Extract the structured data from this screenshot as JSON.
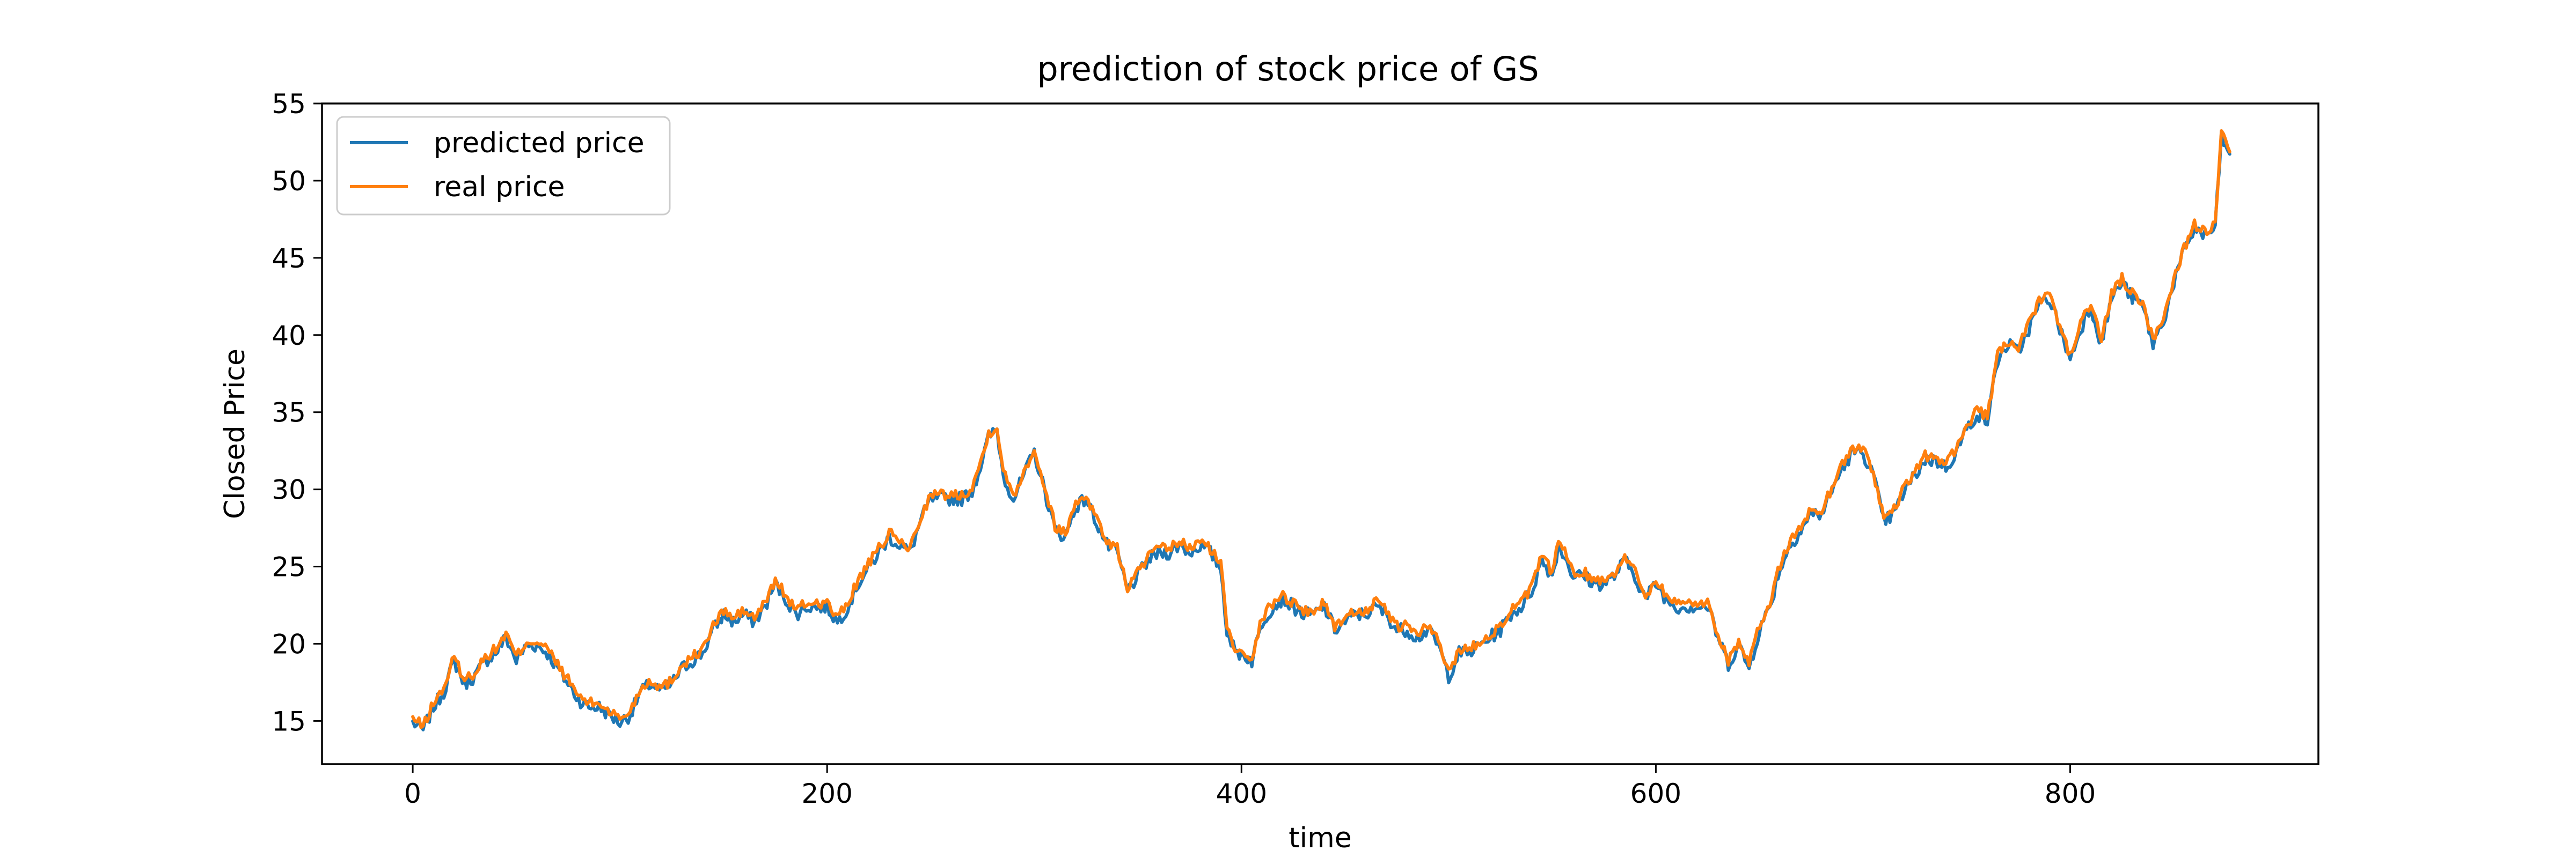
{
  "chart_data": {
    "type": "line",
    "title": "prediction of stock price of GS",
    "xlabel": "time",
    "ylabel": "Closed Price",
    "xlim": [
      -43.8,
      919.8
    ],
    "ylim": [
      12.2,
      55
    ],
    "xticks": [
      0,
      200,
      400,
      600,
      800
    ],
    "yticks": [
      15,
      20,
      25,
      30,
      35,
      40,
      45,
      50,
      55
    ],
    "grid": false,
    "legend_position": "top-left",
    "anchors": [
      [
        0,
        15.0
      ],
      [
        5,
        14.5
      ],
      [
        10,
        16.0
      ],
      [
        15,
        17.0
      ],
      [
        20,
        19.0
      ],
      [
        25,
        17.5
      ],
      [
        30,
        18.0
      ],
      [
        35,
        19.0
      ],
      [
        40,
        19.5
      ],
      [
        45,
        20.5
      ],
      [
        50,
        19.0
      ],
      [
        55,
        20.0
      ],
      [
        60,
        20.0
      ],
      [
        65,
        19.5
      ],
      [
        70,
        18.5
      ],
      [
        75,
        17.5
      ],
      [
        80,
        16.5
      ],
      [
        85,
        16.0
      ],
      [
        90,
        16.0
      ],
      [
        95,
        15.5
      ],
      [
        100,
        15.0
      ],
      [
        105,
        15.5
      ],
      [
        110,
        17.0
      ],
      [
        115,
        17.5
      ],
      [
        120,
        17.0
      ],
      [
        125,
        17.5
      ],
      [
        130,
        18.5
      ],
      [
        135,
        19.0
      ],
      [
        140,
        19.5
      ],
      [
        145,
        21.0
      ],
      [
        150,
        22.0
      ],
      [
        155,
        21.5
      ],
      [
        160,
        22.0
      ],
      [
        165,
        21.5
      ],
      [
        170,
        22.5
      ],
      [
        175,
        24.0
      ],
      [
        180,
        23.0
      ],
      [
        185,
        22.0
      ],
      [
        190,
        22.5
      ],
      [
        195,
        22.5
      ],
      [
        200,
        22.5
      ],
      [
        205,
        21.5
      ],
      [
        210,
        22.5
      ],
      [
        215,
        24.0
      ],
      [
        220,
        25.0
      ],
      [
        225,
        26.0
      ],
      [
        230,
        27.0
      ],
      [
        235,
        26.5
      ],
      [
        240,
        26.0
      ],
      [
        245,
        28.0
      ],
      [
        250,
        29.5
      ],
      [
        255,
        29.5
      ],
      [
        260,
        29.5
      ],
      [
        265,
        29.5
      ],
      [
        270,
        30.0
      ],
      [
        275,
        32.0
      ],
      [
        278,
        33.5
      ],
      [
        282,
        34.0
      ],
      [
        285,
        31.0
      ],
      [
        290,
        29.5
      ],
      [
        295,
        31.0
      ],
      [
        300,
        32.5
      ],
      [
        305,
        30.0
      ],
      [
        310,
        27.5
      ],
      [
        315,
        27.0
      ],
      [
        320,
        29.0
      ],
      [
        325,
        29.5
      ],
      [
        330,
        28.0
      ],
      [
        335,
        26.5
      ],
      [
        340,
        26.0
      ],
      [
        345,
        23.5
      ],
      [
        350,
        24.5
      ],
      [
        355,
        25.5
      ],
      [
        360,
        26.0
      ],
      [
        365,
        26.0
      ],
      [
        370,
        26.5
      ],
      [
        375,
        26.0
      ],
      [
        380,
        26.5
      ],
      [
        385,
        26.0
      ],
      [
        390,
        25.0
      ],
      [
        393,
        21.0
      ],
      [
        397,
        19.5
      ],
      [
        400,
        19.5
      ],
      [
        405,
        19.0
      ],
      [
        410,
        21.5
      ],
      [
        415,
        22.5
      ],
      [
        420,
        23.0
      ],
      [
        425,
        22.5
      ],
      [
        430,
        22.0
      ],
      [
        435,
        22.0
      ],
      [
        440,
        22.5
      ],
      [
        445,
        21.0
      ],
      [
        450,
        21.5
      ],
      [
        455,
        22.0
      ],
      [
        460,
        22.0
      ],
      [
        465,
        22.5
      ],
      [
        470,
        22.0
      ],
      [
        475,
        21.0
      ],
      [
        480,
        21.0
      ],
      [
        485,
        20.5
      ],
      [
        490,
        21.0
      ],
      [
        495,
        20.0
      ],
      [
        500,
        18.0
      ],
      [
        505,
        19.5
      ],
      [
        510,
        19.5
      ],
      [
        515,
        20.0
      ],
      [
        520,
        20.5
      ],
      [
        525,
        21.0
      ],
      [
        530,
        22.0
      ],
      [
        535,
        22.5
      ],
      [
        540,
        23.5
      ],
      [
        545,
        25.5
      ],
      [
        550,
        24.5
      ],
      [
        553,
        26.5
      ],
      [
        557,
        25.5
      ],
      [
        560,
        24.5
      ],
      [
        565,
        24.5
      ],
      [
        570,
        24.0
      ],
      [
        575,
        24.0
      ],
      [
        580,
        24.5
      ],
      [
        585,
        25.5
      ],
      [
        590,
        24.5
      ],
      [
        595,
        23.0
      ],
      [
        600,
        24.0
      ],
      [
        605,
        23.0
      ],
      [
        610,
        22.5
      ],
      [
        615,
        22.5
      ],
      [
        620,
        22.5
      ],
      [
        625,
        22.5
      ],
      [
        630,
        20.5
      ],
      [
        635,
        18.8
      ],
      [
        640,
        20.0
      ],
      [
        645,
        18.5
      ],
      [
        650,
        21.0
      ],
      [
        655,
        22.5
      ],
      [
        660,
        25.0
      ],
      [
        665,
        26.5
      ],
      [
        670,
        27.5
      ],
      [
        675,
        28.5
      ],
      [
        680,
        28.5
      ],
      [
        685,
        30.0
      ],
      [
        690,
        31.5
      ],
      [
        695,
        32.5
      ],
      [
        700,
        32.5
      ],
      [
        705,
        31.0
      ],
      [
        710,
        28.0
      ],
      [
        715,
        28.5
      ],
      [
        720,
        30.0
      ],
      [
        725,
        31.0
      ],
      [
        730,
        32.0
      ],
      [
        735,
        32.0
      ],
      [
        740,
        31.5
      ],
      [
        745,
        32.5
      ],
      [
        750,
        34.0
      ],
      [
        755,
        35.0
      ],
      [
        760,
        34.5
      ],
      [
        765,
        38.5
      ],
      [
        770,
        39.5
      ],
      [
        775,
        39.0
      ],
      [
        780,
        40.5
      ],
      [
        785,
        42.0
      ],
      [
        790,
        42.5
      ],
      [
        795,
        40.5
      ],
      [
        800,
        38.5
      ],
      [
        805,
        40.5
      ],
      [
        810,
        42.0
      ],
      [
        815,
        39.5
      ],
      [
        820,
        42.5
      ],
      [
        825,
        43.5
      ],
      [
        830,
        42.5
      ],
      [
        835,
        42.0
      ],
      [
        840,
        39.5
      ],
      [
        845,
        41.0
      ],
      [
        850,
        43.5
      ],
      [
        855,
        45.5
      ],
      [
        860,
        47.0
      ],
      [
        865,
        46.5
      ],
      [
        870,
        47.0
      ],
      [
        873,
        53.0
      ],
      [
        877,
        51.5
      ]
    ],
    "series": [
      {
        "name": "predicted price",
        "color": "#1f77b4",
        "offset": -0.1,
        "noise": 0.45,
        "seed": 7
      },
      {
        "name": "real price",
        "color": "#ff7f0e",
        "offset": 0.15,
        "noise": 0.35,
        "seed": 13
      }
    ]
  }
}
